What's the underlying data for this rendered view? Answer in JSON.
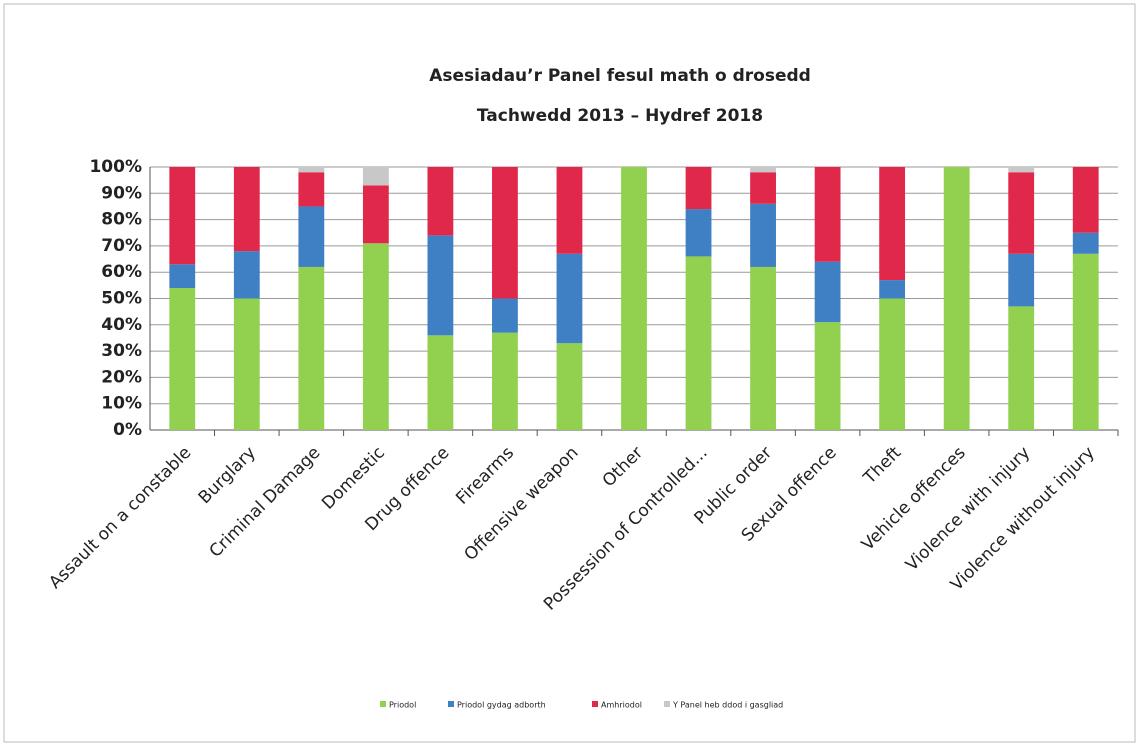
{
  "chart_data": {
    "type": "stacked_bar",
    "title": "Asesiadau’r Panel fesul math o drosedd",
    "subtitle": "Tachwedd 2013 – Hydref 2018",
    "categories": [
      "Assault on a constable",
      "Burglary",
      "Criminal Damage",
      "Domestic",
      "Drug offence",
      "Firearms",
      "Offensive weapon",
      "Other",
      "Possession of Controlled...",
      "Public order",
      "Sexual offence",
      "Theft",
      "Vehicle offences",
      "Violence with injury",
      "Violence without injury"
    ],
    "series": [
      {
        "name": "Priodol",
        "color": "#92d050",
        "values": [
          54,
          50,
          62,
          71,
          36,
          37,
          33,
          100,
          66,
          62,
          41,
          50,
          100,
          47,
          67
        ]
      },
      {
        "name": "Priodol gydag adborth",
        "color": "#3f7fc4",
        "values": [
          9,
          18,
          23,
          0,
          38,
          13,
          34,
          0,
          18,
          24,
          23,
          7,
          0,
          20,
          8
        ]
      },
      {
        "name": "Amhriodol",
        "color": "#e0284a",
        "values": [
          37,
          32,
          13,
          22,
          26,
          50,
          33,
          0,
          16,
          12,
          36,
          43,
          0,
          31,
          25
        ]
      },
      {
        "name": "Y Panel heb ddod i gasgliad",
        "color": "#c8c8c8",
        "values": [
          0,
          0,
          2,
          7,
          0,
          0,
          0,
          0,
          0,
          2,
          0,
          0,
          0,
          2,
          0
        ]
      }
    ],
    "ylim": [
      0,
      100
    ],
    "yticks": [
      {
        "value": 0,
        "label": "0%"
      },
      {
        "value": 10,
        "label": "10%"
      },
      {
        "value": 20,
        "label": "20%"
      },
      {
        "value": 30,
        "label": "30%"
      },
      {
        "value": 40,
        "label": "40%"
      },
      {
        "value": 50,
        "label": "50%"
      },
      {
        "value": 60,
        "label": "60%"
      },
      {
        "value": 70,
        "label": "70%"
      },
      {
        "value": 80,
        "label": "80%"
      },
      {
        "value": 90,
        "label": "90%"
      },
      {
        "value": 100,
        "label": "100%"
      }
    ],
    "grid": true,
    "legend": "bottom"
  }
}
